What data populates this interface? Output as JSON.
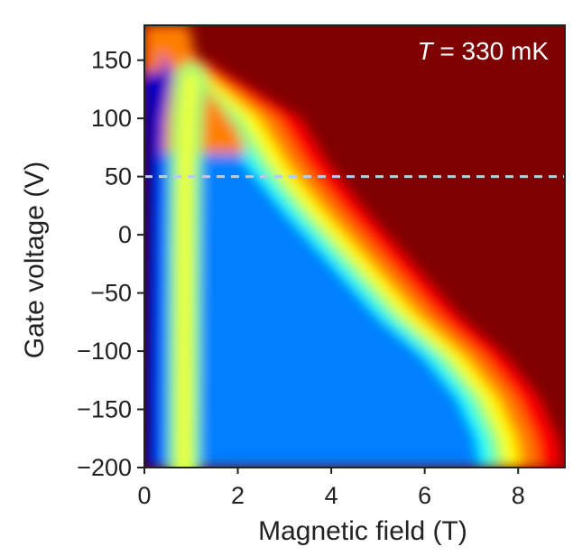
{
  "chart_data": {
    "type": "heatmap",
    "xlabel": "Magnetic field (T)",
    "ylabel": "Gate voltage (V)",
    "xlim": [
      0,
      9
    ],
    "ylim": [
      -200,
      180
    ],
    "xticks": [
      0,
      2,
      4,
      6,
      8
    ],
    "xtick_labels": [
      "0",
      "2",
      "4",
      "6",
      "8"
    ],
    "yticks": [
      150,
      100,
      50,
      0,
      -50,
      -100,
      -150,
      -200
    ],
    "ytick_labels": [
      "150",
      "100",
      "50",
      "0",
      "−50",
      "−100",
      "−150",
      "−200"
    ],
    "annotation": {
      "symbol": "T",
      "text": " = 330 mK"
    },
    "reference_line": {
      "orientation": "horizontal",
      "y": 50,
      "style": "dashed",
      "color": "#b7cde6"
    },
    "colormap": "jet",
    "colormap_stops": [
      "#00007f",
      "#0000ff",
      "#007fff",
      "#00ffff",
      "#7fff7f",
      "#ffff00",
      "#ff7f00",
      "#ff0000",
      "#7f0000"
    ],
    "features": {
      "low_field_edge": [
        [
          0.35,
          140
        ],
        [
          0.18,
          100
        ],
        [
          0.12,
          50
        ],
        [
          0.1,
          0
        ],
        [
          0.08,
          -100
        ],
        [
          0.07,
          -200
        ]
      ],
      "minimum_ridge": [
        [
          1.0,
          135
        ],
        [
          0.92,
          100
        ],
        [
          0.88,
          50
        ],
        [
          0.87,
          0
        ],
        [
          0.86,
          -100
        ],
        [
          0.85,
          -200
        ]
      ],
      "upper_boundary": [
        [
          1.6,
          100
        ],
        [
          2.2,
          60
        ],
        [
          3.0,
          20
        ],
        [
          4.0,
          -25
        ],
        [
          5.0,
          -70
        ],
        [
          6.0,
          -105
        ],
        [
          6.7,
          -140
        ],
        [
          7.1,
          -175
        ],
        [
          7.2,
          -200
        ]
      ]
    }
  }
}
